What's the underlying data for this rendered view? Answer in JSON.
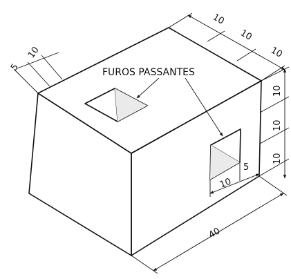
{
  "annotation": "FUROS PASSANTES",
  "dimensions": {
    "top_depth_5": "5",
    "top_depth_10": "10",
    "top_right_1": "10",
    "top_right_2": "10",
    "top_right_3": "10",
    "right_height_1": "10",
    "right_height_2": "10",
    "right_height_3": "10",
    "hole_width": "10",
    "hole_offset": "5",
    "bottom_length": "40"
  }
}
